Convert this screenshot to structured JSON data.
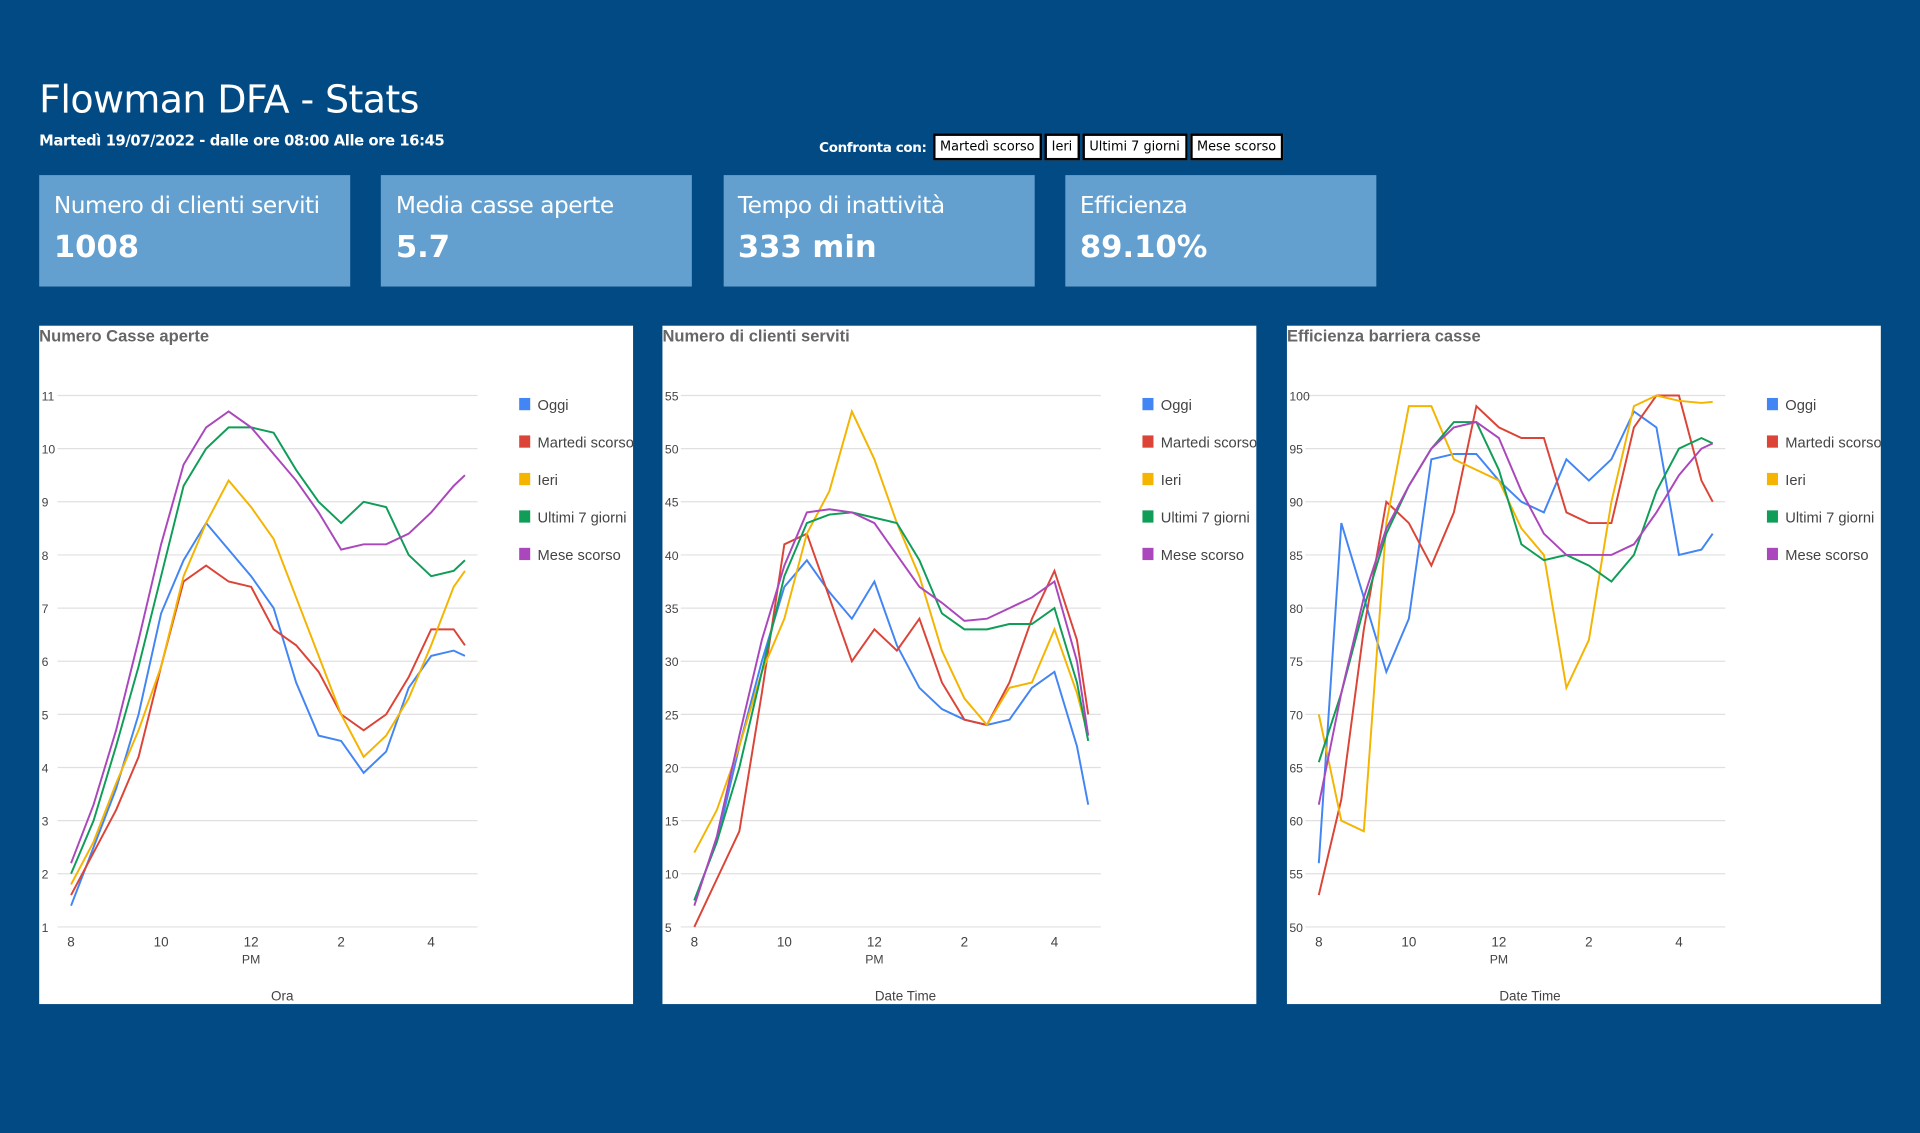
{
  "header": {
    "title": "Flowman DFA - Stats",
    "subtitle": "Martedì 19/07/2022 - dalle ore 08:00 Alle ore 16:45"
  },
  "compare": {
    "label": "Confronta con:",
    "buttons": [
      "Martedì scorso",
      "Ieri",
      "Ultimi 7 giorni",
      "Mese scorso"
    ]
  },
  "cards": [
    {
      "title": "Numero di clienti serviti",
      "value": "1008"
    },
    {
      "title": "Media casse aperte",
      "value": "5.7"
    },
    {
      "title": "Tempo di inattività",
      "value": "333 min"
    },
    {
      "title": "Efficienza",
      "value": "89.10%"
    }
  ],
  "chart_data": [
    {
      "type": "line",
      "title": "Numero Casse aperte",
      "x_label": "Ora",
      "x": [
        8,
        8.5,
        9,
        9.5,
        10,
        10.5,
        11,
        11.5,
        12,
        12.5,
        13,
        13.5,
        14,
        14.5,
        15,
        15.5,
        16,
        16.5,
        16.75
      ],
      "xlim": [
        7.7,
        17.03
      ],
      "xticks": [
        8,
        10,
        {
          "value": 12,
          "label": "12",
          "label2": "PM"
        },
        {
          "value": 14,
          "label": "2"
        },
        {
          "value": 16,
          "label": "4"
        }
      ],
      "ylim": [
        1,
        11
      ],
      "yticks": [
        1,
        2,
        3,
        4,
        5,
        6,
        7,
        8,
        9,
        10,
        11
      ],
      "grid": true,
      "legend": "right",
      "series": [
        {
          "name": "Oggi",
          "color": "#4285f4",
          "values": [
            1.4,
            2.5,
            3.6,
            5,
            6.9,
            7.9,
            8.6,
            8.1,
            7.6,
            7,
            5.6,
            4.6,
            4.5,
            3.9,
            4.3,
            5.5,
            6.1,
            6.2,
            6.1
          ]
        },
        {
          "name": "Martedi scorso",
          "color": "#db4437",
          "values": [
            1.6,
            2.4,
            3.2,
            4.2,
            5.9,
            7.5,
            7.8,
            7.5,
            7.4,
            6.6,
            6.3,
            5.8,
            5,
            4.7,
            5,
            5.7,
            6.6,
            6.6,
            6.3
          ]
        },
        {
          "name": "Ieri",
          "color": "#f4b400",
          "values": [
            1.8,
            2.6,
            3.7,
            4.7,
            5.9,
            7.6,
            8.6,
            9.4,
            8.9,
            8.3,
            7.2,
            6.1,
            5,
            4.2,
            4.6,
            5.3,
            6.3,
            7.4,
            7.7
          ]
        },
        {
          "name": "Ultimi 7 giorni",
          "color": "#0f9d58",
          "values": [
            2,
            3,
            4.4,
            5.9,
            7.6,
            9.3,
            10,
            10.4,
            10.4,
            10.3,
            9.6,
            9,
            8.6,
            9,
            8.9,
            8,
            7.6,
            7.7,
            7.9
          ]
        },
        {
          "name": "Mese scorso",
          "color": "#ab47bc",
          "values": [
            2.2,
            3.3,
            4.7,
            6.4,
            8.2,
            9.7,
            10.4,
            10.7,
            10.4,
            9.9,
            9.4,
            8.8,
            8.1,
            8.2,
            8.2,
            8.4,
            8.8,
            9.3,
            9.5
          ]
        }
      ]
    },
    {
      "type": "line",
      "title": "Numero di clienti serviti",
      "x_label": "Date Time",
      "x": [
        8,
        8.5,
        9,
        9.5,
        10,
        10.5,
        11,
        11.5,
        12,
        12.5,
        13,
        13.5,
        14,
        14.5,
        15,
        15.5,
        16,
        16.5,
        16.75
      ],
      "xlim": [
        7.7,
        17.03
      ],
      "xticks": [
        8,
        10,
        {
          "value": 12,
          "label": "12",
          "label2": "PM"
        },
        {
          "value": 14,
          "label": "2"
        },
        {
          "value": 16,
          "label": "4"
        }
      ],
      "ylim": [
        5,
        55
      ],
      "yticks": [
        5,
        10,
        15,
        20,
        25,
        30,
        35,
        40,
        45,
        50,
        55
      ],
      "grid": true,
      "legend": "right",
      "series": [
        {
          "name": "Oggi",
          "color": "#4285f4",
          "values": [
            7.5,
            13,
            22,
            30,
            37,
            39.5,
            36.5,
            34,
            37.5,
            31.5,
            27.5,
            25.5,
            24.5,
            24,
            24.5,
            27.5,
            29,
            22,
            16.5
          ]
        },
        {
          "name": "Martedi scorso",
          "color": "#db4437",
          "values": [
            5,
            9.5,
            14,
            27,
            41,
            42,
            36,
            30,
            33,
            31,
            34,
            28,
            24.5,
            24,
            28,
            34,
            38.5,
            32,
            25
          ]
        },
        {
          "name": "Ieri",
          "color": "#f4b400",
          "values": [
            12,
            16,
            22,
            29,
            34,
            42,
            46,
            53.5,
            49,
            43,
            38,
            31,
            26.5,
            24,
            27.5,
            28,
            33,
            27,
            23
          ]
        },
        {
          "name": "Ultimi 7 giorni",
          "color": "#0f9d58",
          "values": [
            7.5,
            13,
            20,
            29,
            38,
            43,
            43.8,
            44,
            43.5,
            43,
            39.5,
            34.5,
            33,
            33,
            33.5,
            33.5,
            35,
            28,
            22.5
          ]
        },
        {
          "name": "Mese scorso",
          "color": "#ab47bc",
          "values": [
            7,
            13.5,
            23,
            32,
            39,
            44,
            44.3,
            44,
            43,
            40,
            37,
            35.5,
            33.8,
            34,
            35,
            36,
            37.5,
            30,
            23
          ]
        }
      ]
    },
    {
      "type": "line",
      "title": "Efficienza barriera casse",
      "x_label": "Date Time",
      "x": [
        8,
        8.5,
        9,
        9.5,
        10,
        10.5,
        11,
        11.5,
        12,
        12.5,
        13,
        13.5,
        14,
        14.5,
        15,
        15.5,
        16,
        16.5,
        16.75
      ],
      "xlim": [
        7.7,
        17.03
      ],
      "xticks": [
        8,
        10,
        {
          "value": 12,
          "label": "12",
          "label2": "PM"
        },
        {
          "value": 14,
          "label": "2"
        },
        {
          "value": 16,
          "label": "4"
        }
      ],
      "ylim": [
        50,
        100
      ],
      "yticks": [
        50,
        55,
        60,
        65,
        70,
        75,
        80,
        85,
        90,
        95,
        100
      ],
      "grid": true,
      "legend": "right",
      "series": [
        {
          "name": "Oggi",
          "color": "#4285f4",
          "values": [
            56,
            88,
            81,
            74,
            79,
            94,
            94.5,
            94.5,
            92,
            90,
            89,
            94,
            92,
            94,
            98.5,
            97,
            85,
            85.5,
            87
          ]
        },
        {
          "name": "Martedi scorso",
          "color": "#db4437",
          "values": [
            53,
            62,
            78,
            90,
            88,
            84,
            89,
            99,
            97,
            96,
            96,
            89,
            88,
            88,
            97,
            100,
            100,
            92,
            90
          ]
        },
        {
          "name": "Ieri",
          "color": "#f4b400",
          "values": [
            70,
            60,
            59,
            88,
            99,
            99,
            94,
            93,
            92,
            87.5,
            85,
            72.5,
            77,
            90,
            99,
            100,
            99.5,
            99.3,
            99.4
          ]
        },
        {
          "name": "Ultimi 7 giorni",
          "color": "#0f9d58",
          "values": [
            65.5,
            72,
            80,
            87,
            91.5,
            95,
            97.5,
            97.5,
            93,
            86,
            84.5,
            85,
            84,
            82.5,
            85,
            91,
            95,
            96,
            95.5
          ]
        },
        {
          "name": "Mese scorso",
          "color": "#ab47bc",
          "values": [
            61.5,
            72,
            81,
            87.5,
            91.5,
            95,
            97,
            97.5,
            96,
            91,
            87,
            85,
            85,
            85,
            86,
            89,
            92.5,
            95,
            95.5
          ]
        }
      ]
    }
  ]
}
